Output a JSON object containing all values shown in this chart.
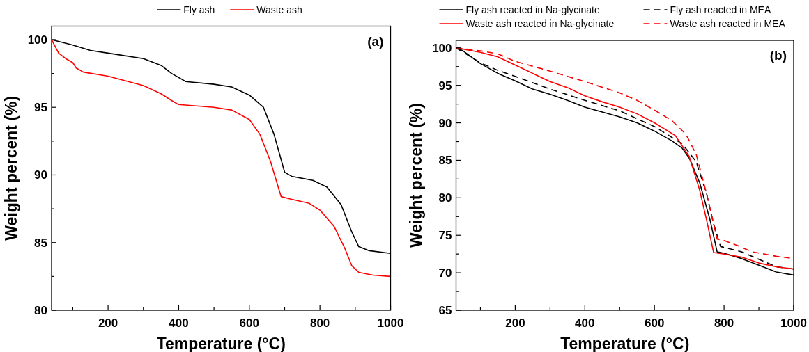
{
  "chart_data": [
    {
      "type": "line",
      "xlabel": "Temperature (°C)",
      "ylabel": "Weight percent (%)",
      "annotations": [
        "(a)"
      ],
      "legend": "top",
      "xlim": [
        40,
        1000
      ],
      "xticks": [
        {
          "value": 100,
          "label": null
        },
        200,
        {
          "value": 300,
          "label": null
        },
        400,
        {
          "value": 500,
          "label": null
        },
        600,
        {
          "value": 700,
          "label": null
        },
        800,
        {
          "value": 900,
          "label": null
        },
        1000
      ],
      "ylim": [
        80,
        101
      ],
      "yticks": [
        80,
        {
          "value": 82.5,
          "label": null
        },
        85,
        {
          "value": 87.5,
          "label": null
        },
        90,
        {
          "value": 92.5,
          "label": null
        },
        95,
        {
          "value": 97.5,
          "label": null
        },
        100
      ],
      "series": [
        {
          "name": "Fly ash",
          "color": "#000000",
          "line_style": "solid",
          "x": [
            40,
            100,
            150,
            200,
            300,
            350,
            380,
            400,
            420,
            500,
            550,
            600,
            640,
            670,
            700,
            720,
            780,
            820,
            860,
            890,
            910,
            940,
            1000
          ],
          "values": [
            100,
            99.6,
            99.2,
            99.0,
            98.6,
            98.1,
            97.5,
            97.2,
            96.9,
            96.7,
            96.5,
            95.9,
            95.0,
            93.0,
            90.2,
            89.9,
            89.6,
            89.1,
            87.8,
            85.8,
            84.7,
            84.4,
            84.2
          ]
        },
        {
          "name": "Waste ash",
          "color": "#ff0000",
          "line_style": "solid",
          "x": [
            40,
            50,
            60,
            80,
            100,
            110,
            130,
            200,
            300,
            350,
            380,
            400,
            450,
            500,
            550,
            600,
            630,
            660,
            690,
            720,
            770,
            800,
            840,
            870,
            890,
            910,
            950,
            1000
          ],
          "values": [
            100,
            99.5,
            99.0,
            98.6,
            98.3,
            97.9,
            97.6,
            97.3,
            96.6,
            96.0,
            95.5,
            95.2,
            95.1,
            95.0,
            94.8,
            94.1,
            93.0,
            91.0,
            88.4,
            88.2,
            87.9,
            87.4,
            86.2,
            84.6,
            83.3,
            82.8,
            82.6,
            82.5
          ]
        }
      ]
    },
    {
      "type": "line",
      "xlabel": "Temperature (°C)",
      "ylabel": "Weight percent (%)",
      "annotations": [
        "(b)"
      ],
      "legend": "top",
      "xlim": [
        30,
        1000
      ],
      "xticks": [
        {
          "value": 100,
          "label": null
        },
        200,
        {
          "value": 300,
          "label": null
        },
        400,
        {
          "value": 500,
          "label": null
        },
        600,
        {
          "value": 700,
          "label": null
        },
        800,
        {
          "value": 900,
          "label": null
        },
        1000
      ],
      "ylim": [
        65,
        101
      ],
      "yticks": [
        65,
        {
          "value": 67.5,
          "label": null
        },
        70,
        {
          "value": 72.5,
          "label": null
        },
        75,
        {
          "value": 77.5,
          "label": null
        },
        80,
        {
          "value": 82.5,
          "label": null
        },
        85,
        {
          "value": 87.5,
          "label": null
        },
        90,
        {
          "value": 92.5,
          "label": null
        },
        95,
        {
          "value": 97.5,
          "label": null
        },
        100
      ],
      "series": [
        {
          "name": "Fly ash reacted in Na-glycinate",
          "color": "#000000",
          "line_style": "solid",
          "x": [
            30,
            50,
            100,
            150,
            200,
            250,
            300,
            350,
            400,
            500,
            550,
            600,
            650,
            680,
            700,
            730,
            760,
            780,
            800,
            850,
            900,
            950,
            1000
          ],
          "values": [
            100,
            99.6,
            97.9,
            96.6,
            95.6,
            94.5,
            93.8,
            93.0,
            92.1,
            90.8,
            90.0,
            88.9,
            87.6,
            86.6,
            85.3,
            82.0,
            77.0,
            72.8,
            72.6,
            71.9,
            71.0,
            70.1,
            69.7
          ]
        },
        {
          "name": "Fly ash reacted in MEA",
          "color": "#000000",
          "line_style": "dashed",
          "x": [
            30,
            100,
            150,
            200,
            300,
            400,
            500,
            600,
            680,
            720,
            750,
            770,
            790,
            850,
            900,
            950,
            1000
          ],
          "values": [
            100,
            98.0,
            97.0,
            96.2,
            94.5,
            93.0,
            91.6,
            89.5,
            87.2,
            84.8,
            80.5,
            76.5,
            73.5,
            72.8,
            71.8,
            70.8,
            70.5
          ]
        },
        {
          "name": "Waste ash reacted in Na-glycinate",
          "color": "#ff0000",
          "line_style": "solid",
          "x": [
            30,
            100,
            150,
            200,
            250,
            300,
            350,
            400,
            450,
            500,
            550,
            600,
            660,
            700,
            730,
            750,
            770,
            800,
            850,
            900,
            950,
            1000
          ],
          "values": [
            100,
            99.4,
            98.8,
            97.7,
            96.6,
            95.5,
            94.7,
            93.6,
            92.8,
            92.1,
            91.2,
            90.0,
            88.3,
            85.5,
            81.0,
            77.0,
            72.7,
            72.5,
            72.1,
            71.3,
            70.8,
            70.5
          ]
        },
        {
          "name": "Waste ash reacted in MEA",
          "color": "#ff0000",
          "line_style": "dashed",
          "x": [
            30,
            100,
            150,
            200,
            300,
            400,
            500,
            550,
            600,
            650,
            690,
            720,
            750,
            780,
            800,
            840,
            880,
            950,
            1000
          ],
          "values": [
            100,
            99.6,
            99.2,
            98.2,
            96.9,
            95.5,
            94.0,
            93.0,
            91.7,
            90.3,
            88.5,
            85.8,
            80.5,
            74.5,
            74.3,
            73.6,
            72.8,
            72.2,
            71.9
          ]
        }
      ]
    }
  ]
}
